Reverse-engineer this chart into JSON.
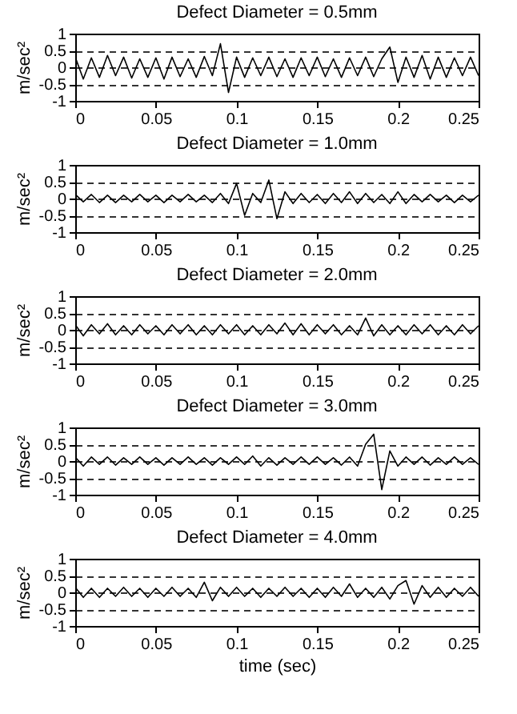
{
  "chart_data": [
    {
      "type": "line",
      "title": "Defect Diameter = 0.5mm",
      "ylabel": "m/sec²",
      "xlim": [
        0,
        0.25
      ],
      "ylim": [
        -1,
        1
      ],
      "xticks": [
        0,
        0.05,
        0.1,
        0.15,
        0.2,
        0.25
      ],
      "yticks": [
        -1,
        -0.5,
        0,
        0.5,
        1
      ],
      "grid": "y",
      "x": [
        0,
        0.005,
        0.01,
        0.015,
        0.02,
        0.025,
        0.03,
        0.035,
        0.04,
        0.045,
        0.05,
        0.055,
        0.06,
        0.065,
        0.07,
        0.075,
        0.08,
        0.085,
        0.09,
        0.095,
        0.1,
        0.105,
        0.11,
        0.115,
        0.12,
        0.125,
        0.13,
        0.135,
        0.14,
        0.145,
        0.15,
        0.155,
        0.16,
        0.165,
        0.17,
        0.175,
        0.18,
        0.185,
        0.19,
        0.195,
        0.2,
        0.205,
        0.21,
        0.215,
        0.22,
        0.225,
        0.23,
        0.235,
        0.24,
        0.245,
        0.25
      ],
      "series": [
        {
          "color": "#000000",
          "values": [
            0.3,
            -0.35,
            0.28,
            -0.3,
            0.35,
            -0.25,
            0.3,
            -0.32,
            0.25,
            -0.3,
            0.28,
            -0.35,
            0.3,
            -0.28,
            0.25,
            -0.3,
            0.32,
            -0.25,
            0.7,
            -0.75,
            0.3,
            -0.3,
            0.28,
            -0.25,
            0.3,
            -0.28,
            0.25,
            -0.3,
            0.28,
            -0.25,
            0.3,
            -0.28,
            0.25,
            -0.3,
            0.28,
            -0.25,
            0.3,
            -0.28,
            0.25,
            0.6,
            -0.45,
            0.3,
            -0.3,
            0.35,
            -0.35,
            0.3,
            -0.3,
            0.28,
            -0.25,
            0.3,
            -0.25
          ]
        }
      ]
    },
    {
      "type": "line",
      "title": "Defect Diameter = 1.0mm",
      "ylabel": "m/sec²",
      "xlim": [
        0,
        0.25
      ],
      "ylim": [
        -1,
        1
      ],
      "xticks": [
        0,
        0.05,
        0.1,
        0.15,
        0.2,
        0.25
      ],
      "yticks": [
        -1,
        -0.5,
        0,
        0.5,
        1
      ],
      "grid": "y",
      "x": [
        0,
        0.005,
        0.01,
        0.015,
        0.02,
        0.025,
        0.03,
        0.035,
        0.04,
        0.045,
        0.05,
        0.055,
        0.06,
        0.065,
        0.07,
        0.075,
        0.08,
        0.085,
        0.09,
        0.095,
        0.1,
        0.105,
        0.11,
        0.115,
        0.12,
        0.125,
        0.13,
        0.135,
        0.14,
        0.145,
        0.15,
        0.155,
        0.16,
        0.165,
        0.17,
        0.175,
        0.18,
        0.185,
        0.19,
        0.195,
        0.2,
        0.205,
        0.21,
        0.215,
        0.22,
        0.225,
        0.23,
        0.235,
        0.24,
        0.245,
        0.25
      ],
      "series": [
        {
          "color": "#000000",
          "values": [
            0.12,
            -0.1,
            0.12,
            -0.12,
            0.1,
            -0.12,
            0.1,
            -0.1,
            0.12,
            -0.1,
            0.1,
            -0.12,
            0.1,
            -0.1,
            0.12,
            -0.1,
            0.1,
            -0.12,
            0.15,
            -0.15,
            0.45,
            -0.5,
            0.15,
            -0.12,
            0.55,
            -0.6,
            0.2,
            -0.15,
            0.15,
            -0.12,
            0.12,
            -0.15,
            0.15,
            -0.12,
            0.2,
            -0.15,
            0.15,
            -0.12,
            0.12,
            -0.15,
            0.2,
            -0.15,
            0.12,
            -0.1,
            0.12,
            -0.1,
            0.1,
            -0.12,
            0.1,
            -0.1,
            0.1
          ]
        }
      ]
    },
    {
      "type": "line",
      "title": "Defect Diameter = 2.0mm",
      "ylabel": "m/sec²",
      "xlim": [
        0,
        0.25
      ],
      "ylim": [
        -1,
        1
      ],
      "xticks": [
        0,
        0.05,
        0.1,
        0.15,
        0.2,
        0.25
      ],
      "yticks": [
        -1,
        -0.5,
        0,
        0.5,
        1
      ],
      "grid": "y",
      "x": [
        0,
        0.005,
        0.01,
        0.015,
        0.02,
        0.025,
        0.03,
        0.035,
        0.04,
        0.045,
        0.05,
        0.055,
        0.06,
        0.065,
        0.07,
        0.075,
        0.08,
        0.085,
        0.09,
        0.095,
        0.1,
        0.105,
        0.11,
        0.115,
        0.12,
        0.125,
        0.13,
        0.135,
        0.14,
        0.145,
        0.15,
        0.155,
        0.16,
        0.165,
        0.17,
        0.175,
        0.18,
        0.185,
        0.19,
        0.195,
        0.2,
        0.205,
        0.21,
        0.215,
        0.22,
        0.225,
        0.23,
        0.235,
        0.24,
        0.245,
        0.25
      ],
      "series": [
        {
          "color": "#000000",
          "values": [
            0.15,
            -0.18,
            0.15,
            -0.12,
            0.18,
            -0.15,
            0.12,
            -0.15,
            0.15,
            -0.12,
            0.12,
            -0.15,
            0.15,
            -0.12,
            0.15,
            -0.15,
            0.12,
            -0.15,
            0.15,
            -0.12,
            0.15,
            -0.15,
            0.12,
            -0.15,
            0.15,
            -0.12,
            0.2,
            -0.15,
            0.18,
            -0.15,
            0.15,
            -0.12,
            0.15,
            -0.15,
            0.12,
            -0.15,
            0.35,
            -0.18,
            0.15,
            -0.15,
            0.12,
            -0.15,
            0.15,
            -0.12,
            0.15,
            -0.15,
            0.12,
            -0.15,
            0.15,
            -0.12,
            0.12
          ]
        }
      ]
    },
    {
      "type": "line",
      "title": "Defect Diameter = 3.0mm",
      "ylabel": "m/sec²",
      "xlim": [
        0,
        0.25
      ],
      "ylim": [
        -1,
        1
      ],
      "xticks": [
        0,
        0.05,
        0.1,
        0.15,
        0.2,
        0.25
      ],
      "yticks": [
        -1,
        -0.5,
        0,
        0.5,
        1
      ],
      "grid": "y",
      "x": [
        0,
        0.005,
        0.01,
        0.015,
        0.02,
        0.025,
        0.03,
        0.035,
        0.04,
        0.045,
        0.05,
        0.055,
        0.06,
        0.065,
        0.07,
        0.075,
        0.08,
        0.085,
        0.09,
        0.095,
        0.1,
        0.105,
        0.11,
        0.115,
        0.12,
        0.125,
        0.13,
        0.135,
        0.14,
        0.145,
        0.15,
        0.155,
        0.16,
        0.165,
        0.17,
        0.175,
        0.18,
        0.185,
        0.19,
        0.195,
        0.2,
        0.205,
        0.21,
        0.215,
        0.22,
        0.225,
        0.23,
        0.235,
        0.24,
        0.245,
        0.25
      ],
      "series": [
        {
          "color": "#000000",
          "values": [
            0.12,
            -0.15,
            0.12,
            -0.1,
            0.12,
            -0.12,
            0.1,
            -0.1,
            0.12,
            -0.1,
            0.1,
            -0.12,
            0.1,
            -0.1,
            0.12,
            -0.1,
            0.1,
            -0.12,
            0.1,
            -0.1,
            0.12,
            -0.1,
            0.15,
            -0.15,
            0.1,
            -0.12,
            0.1,
            -0.1,
            0.12,
            -0.1,
            0.12,
            -0.1,
            0.1,
            -0.12,
            0.12,
            -0.15,
            0.5,
            0.8,
            -0.85,
            0.3,
            -0.15,
            0.12,
            -0.1,
            0.12,
            -0.12,
            0.1,
            -0.1,
            0.12,
            -0.1,
            0.1,
            -0.1
          ]
        }
      ]
    },
    {
      "type": "line",
      "title": "Defect Diameter = 4.0mm",
      "xlabel": "time (sec)",
      "ylabel": "m/sec²",
      "xlim": [
        0,
        0.25
      ],
      "ylim": [
        -1,
        1
      ],
      "xticks": [
        0,
        0.05,
        0.1,
        0.15,
        0.2,
        0.25
      ],
      "yticks": [
        -1,
        -0.5,
        0,
        0.5,
        1
      ],
      "grid": "y",
      "x": [
        0,
        0.005,
        0.01,
        0.015,
        0.02,
        0.025,
        0.03,
        0.035,
        0.04,
        0.045,
        0.05,
        0.055,
        0.06,
        0.065,
        0.07,
        0.075,
        0.08,
        0.085,
        0.09,
        0.095,
        0.1,
        0.105,
        0.11,
        0.115,
        0.12,
        0.125,
        0.13,
        0.135,
        0.14,
        0.145,
        0.15,
        0.155,
        0.16,
        0.165,
        0.17,
        0.175,
        0.18,
        0.185,
        0.19,
        0.195,
        0.2,
        0.205,
        0.21,
        0.215,
        0.22,
        0.225,
        0.23,
        0.235,
        0.24,
        0.245,
        0.25
      ],
      "series": [
        {
          "color": "#000000",
          "values": [
            0.15,
            -0.15,
            0.12,
            -0.15,
            0.12,
            -0.12,
            0.15,
            -0.12,
            0.12,
            -0.15,
            0.12,
            -0.12,
            0.15,
            -0.12,
            0.12,
            -0.15,
            0.3,
            -0.25,
            0.15,
            -0.12,
            0.15,
            -0.12,
            0.12,
            -0.15,
            0.12,
            -0.12,
            0.15,
            -0.12,
            0.12,
            -0.15,
            0.12,
            -0.15,
            0.15,
            -0.12,
            0.25,
            -0.15,
            0.12,
            -0.15,
            0.15,
            -0.2,
            0.2,
            0.35,
            -0.35,
            0.2,
            -0.15,
            0.15,
            -0.15,
            0.12,
            -0.12,
            0.15,
            -0.12
          ]
        }
      ]
    }
  ]
}
